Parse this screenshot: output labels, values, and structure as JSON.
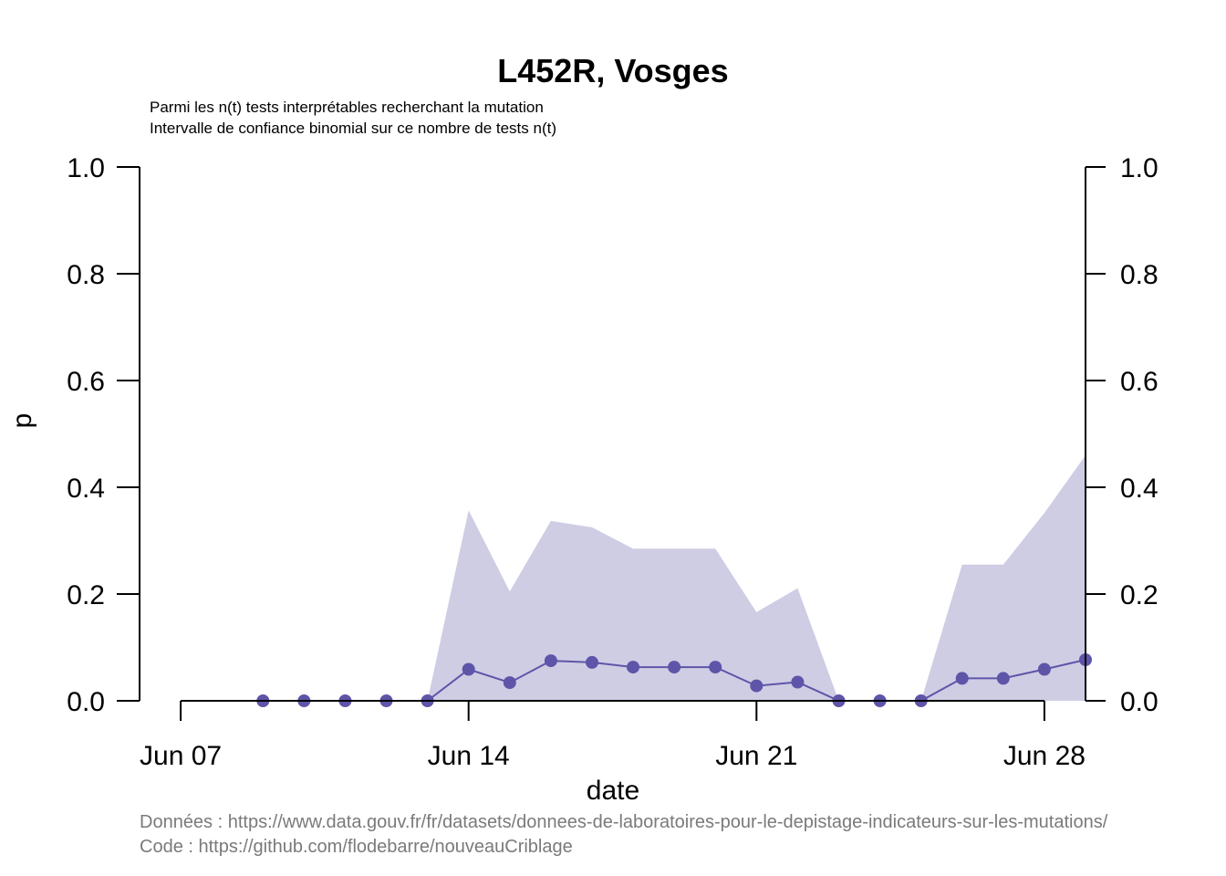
{
  "chart_data": {
    "type": "line",
    "title": "L452R, Vosges",
    "subtitle_lines": [
      "Parmi les n(t) tests interprétables recherchant la mutation",
      "Intervalle de confiance binomial sur ce nombre de tests n(t)"
    ],
    "xlabel": "date",
    "ylabel": "p",
    "x_ticks": [
      "Jun 07",
      "Jun 14",
      "Jun 21",
      "Jun 28"
    ],
    "x_tick_dates": [
      "2021-06-07",
      "2021-06-14",
      "2021-06-21",
      "2021-06-28"
    ],
    "y_ticks": [
      "0.0",
      "0.2",
      "0.4",
      "0.6",
      "0.8",
      "1.0"
    ],
    "ylim": [
      0,
      1
    ],
    "xlim": [
      "2021-06-06",
      "2021-06-29"
    ],
    "colors": {
      "line": "#5e55a8",
      "ci_fill": "#cfcde4"
    },
    "series": [
      {
        "dates": [
          "2021-06-09",
          "2021-06-10",
          "2021-06-11",
          "2021-06-12",
          "2021-06-13",
          "2021-06-14",
          "2021-06-15",
          "2021-06-16",
          "2021-06-17",
          "2021-06-18",
          "2021-06-19",
          "2021-06-20",
          "2021-06-21",
          "2021-06-22",
          "2021-06-23",
          "2021-06-24",
          "2021-06-25",
          "2021-06-26",
          "2021-06-27",
          "2021-06-28",
          "2021-06-29"
        ],
        "values": [
          0,
          0,
          0,
          0,
          0,
          0.059,
          0.034,
          0.075,
          0.072,
          0.063,
          0.063,
          0.063,
          0.028,
          0.035,
          0,
          0,
          0,
          0.042,
          0.042,
          0.059,
          0.077
        ],
        "ci_lower": [
          0,
          0,
          0,
          0,
          0,
          0,
          0,
          0,
          0,
          0,
          0,
          0,
          0,
          0,
          0,
          0,
          0,
          0,
          0,
          0,
          0
        ],
        "ci_upper": [
          0,
          0,
          0,
          0,
          0,
          0.357,
          0.205,
          0.337,
          0.325,
          0.285,
          0.285,
          0.285,
          0.166,
          0.211,
          0,
          0,
          0,
          0.255,
          0.255,
          0.352,
          0.46
        ]
      }
    ]
  },
  "captions": {
    "data_source": "Données : https://www.data.gouv.fr/fr/datasets/donnees-de-laboratoires-pour-le-depistage-indicateurs-sur-les-mutations/",
    "code_source": "Code : https://github.com/flodebarre/nouveauCriblage"
  }
}
